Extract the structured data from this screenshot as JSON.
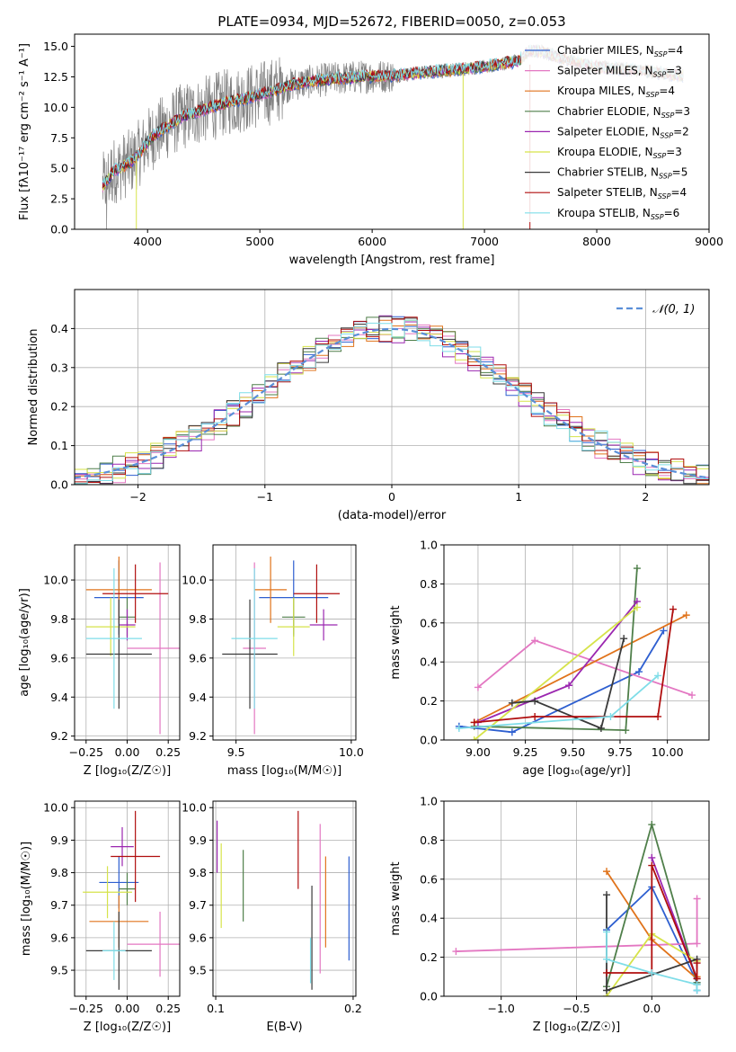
{
  "colors": {
    "chabrier_miles": "#2e5fd0",
    "salpeter_miles": "#e377c2",
    "kroupa_miles": "#e0731b",
    "chabrier_elodie": "#4f7f4a",
    "salpeter_elodie": "#9b27b0",
    "kroupa_elodie": "#d6e34a",
    "chabrier_stelib": "#3a3a3a",
    "salpeter_stelib": "#b00e0e",
    "kroupa_stelib": "#7fdde8",
    "observed": "#808080",
    "normal_curve": "#5b8fd8"
  },
  "chart_data": [
    {
      "type": "line",
      "title": "PLATE=0934, MJD=52672, FIBERID=0050, z=0.053",
      "xlabel": "wavelength [Angstrom, rest frame]",
      "ylabel": "Flux [fλ10⁻¹⁷ erg cm⁻² s⁻¹ A⁻¹]",
      "xlim": [
        3350,
        9000
      ],
      "ylim": [
        0,
        16
      ],
      "xticks": [
        4000,
        5000,
        6000,
        7000,
        8000,
        9000
      ],
      "yticks": [
        "0.0",
        "2.5",
        "5.0",
        "7.5",
        "10.0",
        "12.5",
        "15.0"
      ],
      "legend_position": "right",
      "legend": [
        {
          "label": "Chabrier MILES, N",
          "sub": "SSP",
          "suffix": "=4",
          "color_key": "chabrier_miles"
        },
        {
          "label": "Salpeter MILES, N",
          "sub": "SSP",
          "suffix": "=3",
          "color_key": "salpeter_miles"
        },
        {
          "label": "Kroupa MILES, N",
          "sub": "SSP",
          "suffix": "=4",
          "color_key": "kroupa_miles"
        },
        {
          "label": "Chabrier ELODIE, N",
          "sub": "SSP",
          "suffix": "=3",
          "color_key": "chabrier_elodie"
        },
        {
          "label": "Salpeter ELODIE, N",
          "sub": "SSP",
          "suffix": "=2",
          "color_key": "salpeter_elodie"
        },
        {
          "label": "Kroupa ELODIE, N",
          "sub": "SSP",
          "suffix": "=3",
          "color_key": "kroupa_elodie"
        },
        {
          "label": "Chabrier STELIB, N",
          "sub": "SSP",
          "suffix": "=5",
          "color_key": "chabrier_stelib"
        },
        {
          "label": "Salpeter STELIB, N",
          "sub": "SSP",
          "suffix": "=4",
          "color_key": "salpeter_stelib"
        },
        {
          "label": "Kroupa STELIB, N",
          "sub": "SSP",
          "suffix": "=6",
          "color_key": "kroupa_stelib"
        }
      ],
      "model_trend": {
        "x": [
          3600,
          3700,
          3850,
          3950,
          4000,
          4100,
          4300,
          4500,
          4700,
          4900,
          5100,
          5300,
          5600,
          5900,
          6200,
          6500,
          6800,
          7100,
          7300,
          7400,
          7500,
          7700,
          7900,
          8100,
          8300,
          8500,
          8750
        ],
        "y": [
          3.5,
          4.8,
          5.5,
          6.5,
          7.2,
          8.0,
          9.2,
          9.8,
          10.4,
          10.8,
          11.3,
          11.9,
          12.3,
          12.5,
          12.6,
          12.9,
          13.1,
          13.5,
          13.8,
          14.6,
          14.6,
          14.0,
          13.5,
          13.2,
          13.1,
          12.9,
          12.6
        ]
      }
    },
    {
      "type": "histogram",
      "xlabel": "(data-model)/error",
      "ylabel": "Normed distribution",
      "xlim": [
        -2.5,
        2.5
      ],
      "ylim": [
        0,
        0.5
      ],
      "xticks": [
        -2,
        -1,
        0,
        1,
        2
      ],
      "yticks": [
        "0.0",
        "0.1",
        "0.2",
        "0.3",
        "0.4"
      ],
      "legend_label": "𝒩(0, 1)",
      "curve": "normal pdf mean 0 sigma 1",
      "bin_width": 0.1,
      "grid": true
    },
    {
      "type": "errorbar",
      "xlabel": "Z [log₁₀(Z/Z☉)]",
      "ylabel": "age  [log₁₀(age/yr)]",
      "xlim": [
        -0.32,
        0.32
      ],
      "ylim": [
        9.18,
        10.18
      ],
      "xticks": [
        "−0.25",
        "0.00",
        "0.25"
      ],
      "yticks": [
        "9.2",
        "9.4",
        "9.6",
        "9.8",
        "10.0"
      ],
      "points": [
        {
          "key": "chabrier_miles",
          "x": -0.05,
          "xerr": 0.15,
          "y": 9.91,
          "yerr": 0.19
        },
        {
          "key": "salpeter_miles",
          "x": 0.2,
          "xerr": 0.2,
          "y": 9.65,
          "yerr": 0.44
        },
        {
          "key": "kroupa_miles",
          "x": -0.05,
          "xerr": 0.2,
          "y": 9.95,
          "yerr": 0.17
        },
        {
          "key": "chabrier_elodie",
          "x": 0.0,
          "xerr": 0.05,
          "y": 9.81,
          "yerr": 0.1
        },
        {
          "key": "salpeter_elodie",
          "x": 0.0,
          "xerr": 0.05,
          "y": 9.77,
          "yerr": 0.08
        },
        {
          "key": "kroupa_elodie",
          "x": -0.1,
          "xerr": 0.15,
          "y": 9.76,
          "yerr": 0.15
        },
        {
          "key": "chabrier_stelib",
          "x": -0.05,
          "xerr": 0.2,
          "y": 9.62,
          "yerr": 0.28
        },
        {
          "key": "salpeter_stelib",
          "x": 0.05,
          "xerr": 0.2,
          "y": 9.93,
          "yerr": 0.15
        },
        {
          "key": "kroupa_stelib",
          "x": -0.08,
          "xerr": 0.17,
          "y": 9.7,
          "yerr": 0.36
        }
      ]
    },
    {
      "type": "errorbar",
      "xlabel": "mass [log₁₀(M/M☉)]",
      "ylabel": "",
      "xlim": [
        9.4,
        10.02
      ],
      "ylim": [
        9.18,
        10.18
      ],
      "xticks": [
        "9.5",
        "10.0"
      ],
      "yticks": [
        "9.2",
        "9.4",
        "9.6",
        "9.8",
        "10.0"
      ],
      "points": [
        {
          "key": "chabrier_miles",
          "x": 9.75,
          "xerr": 0.15,
          "y": 9.91,
          "yerr": 0.19
        },
        {
          "key": "salpeter_miles",
          "x": 9.58,
          "xerr": 0.05,
          "y": 9.65,
          "yerr": 0.44
        },
        {
          "key": "kroupa_miles",
          "x": 9.65,
          "xerr": 0.07,
          "y": 9.95,
          "yerr": 0.17
        },
        {
          "key": "chabrier_elodie",
          "x": 9.75,
          "xerr": 0.05,
          "y": 9.81,
          "yerr": 0.1
        },
        {
          "key": "salpeter_elodie",
          "x": 9.88,
          "xerr": 0.06,
          "y": 9.77,
          "yerr": 0.08
        },
        {
          "key": "kroupa_elodie",
          "x": 9.75,
          "xerr": 0.07,
          "y": 9.76,
          "yerr": 0.15
        },
        {
          "key": "chabrier_stelib",
          "x": 9.56,
          "xerr": 0.12,
          "y": 9.62,
          "yerr": 0.28
        },
        {
          "key": "salpeter_stelib",
          "x": 9.85,
          "xerr": 0.1,
          "y": 9.93,
          "yerr": 0.15
        },
        {
          "key": "kroupa_stelib",
          "x": 9.58,
          "xerr": 0.1,
          "y": 9.7,
          "yerr": 0.36
        }
      ]
    },
    {
      "type": "line",
      "xlabel": "age  [log₁₀(age/yr)]",
      "ylabel": "mass weight",
      "xlim": [
        8.82,
        10.22
      ],
      "ylim": [
        0,
        1
      ],
      "xticks": [
        "9.00",
        "9.25",
        "9.50",
        "9.75",
        "10.00"
      ],
      "yticks": [
        "0.0",
        "0.2",
        "0.4",
        "0.6",
        "0.8",
        "1.0"
      ],
      "series": [
        {
          "key": "chabrier_miles",
          "x": [
            8.9,
            9.18,
            9.85,
            9.98
          ],
          "y": [
            0.07,
            0.04,
            0.35,
            0.56
          ]
        },
        {
          "key": "salpeter_miles",
          "x": [
            9.0,
            9.3,
            10.13
          ],
          "y": [
            0.27,
            0.51,
            0.23
          ]
        },
        {
          "key": "kroupa_miles",
          "x": [
            8.98,
            10.1
          ],
          "y": [
            0.09,
            0.64
          ]
        },
        {
          "key": "chabrier_elodie",
          "x": [
            8.98,
            9.78,
            9.84
          ],
          "y": [
            0.07,
            0.05,
            0.88
          ]
        },
        {
          "key": "salpeter_elodie",
          "x": [
            9.0,
            9.48,
            9.84
          ],
          "y": [
            0.09,
            0.28,
            0.71
          ]
        },
        {
          "key": "kroupa_elodie",
          "x": [
            8.98,
            9.84
          ],
          "y": [
            0.0,
            0.68
          ]
        },
        {
          "key": "chabrier_stelib",
          "x": [
            9.18,
            9.3,
            9.65,
            9.77
          ],
          "y": [
            0.19,
            0.2,
            0.06,
            0.52
          ]
        },
        {
          "key": "salpeter_stelib",
          "x": [
            8.98,
            9.3,
            9.95,
            10.03
          ],
          "y": [
            0.09,
            0.12,
            0.12,
            0.67
          ]
        },
        {
          "key": "kroupa_stelib",
          "x": [
            8.9,
            9.7,
            9.95
          ],
          "y": [
            0.06,
            0.12,
            0.33
          ]
        }
      ]
    },
    {
      "type": "errorbar",
      "xlabel": "Z [log₁₀(Z/Z☉)]",
      "ylabel": "mass [log₁₀(M/M☉)]",
      "xlim": [
        -0.32,
        0.32
      ],
      "ylim": [
        9.42,
        10.02
      ],
      "xticks": [
        "−0.25",
        "0.00",
        "0.25"
      ],
      "yticks": [
        "9.5",
        "9.6",
        "9.7",
        "9.8",
        "9.9",
        "10.0"
      ],
      "points": [
        {
          "key": "chabrier_miles",
          "x": -0.05,
          "xerr": 0.12,
          "y": 9.77,
          "yerr": 0.08
        },
        {
          "key": "salpeter_miles",
          "x": 0.2,
          "xerr": 0.2,
          "y": 9.58,
          "yerr": 0.1
        },
        {
          "key": "kroupa_miles",
          "x": -0.05,
          "xerr": 0.18,
          "y": 9.65,
          "yerr": 0.08
        },
        {
          "key": "chabrier_elodie",
          "x": 0.0,
          "xerr": 0.05,
          "y": 9.75,
          "yerr": 0.05
        },
        {
          "key": "salpeter_elodie",
          "x": -0.03,
          "xerr": 0.07,
          "y": 9.88,
          "yerr": 0.06
        },
        {
          "key": "kroupa_elodie",
          "x": -0.12,
          "xerr": 0.15,
          "y": 9.74,
          "yerr": 0.08
        },
        {
          "key": "chabrier_stelib",
          "x": -0.05,
          "xerr": 0.2,
          "y": 9.56,
          "yerr": 0.12
        },
        {
          "key": "salpeter_stelib",
          "x": 0.05,
          "xerr": 0.15,
          "y": 9.85,
          "yerr": 0.14
        },
        {
          "key": "kroupa_stelib",
          "x": -0.08,
          "xerr": 0.07,
          "y": 9.56,
          "yerr": 0.09
        }
      ]
    },
    {
      "type": "errorbar",
      "xlabel": "E(B-V)",
      "ylabel": "",
      "xlim": [
        0.098,
        0.202
      ],
      "ylim": [
        9.42,
        10.02
      ],
      "xticks": [
        "0.1",
        "0.2"
      ],
      "yticks": [
        "9.5",
        "9.6",
        "9.7",
        "9.8",
        "9.9",
        "10.0"
      ],
      "points": [
        {
          "key": "chabrier_miles",
          "x": 0.197,
          "xerr": 0,
          "y": 9.69,
          "yerr": 0.16
        },
        {
          "key": "salpeter_miles",
          "x": 0.176,
          "xerr": 0,
          "y": 9.72,
          "yerr": 0.23
        },
        {
          "key": "kroupa_miles",
          "x": 0.18,
          "xerr": 0,
          "y": 9.71,
          "yerr": 0.14
        },
        {
          "key": "chabrier_elodie",
          "x": 0.12,
          "xerr": 0,
          "y": 9.76,
          "yerr": 0.11
        },
        {
          "key": "salpeter_elodie",
          "x": 0.101,
          "xerr": 0,
          "y": 9.88,
          "yerr": 0.08
        },
        {
          "key": "kroupa_elodie",
          "x": 0.104,
          "xerr": 0,
          "y": 9.76,
          "yerr": 0.13
        },
        {
          "key": "chabrier_stelib",
          "x": 0.17,
          "xerr": 0,
          "y": 9.6,
          "yerr": 0.16
        },
        {
          "key": "salpeter_stelib",
          "x": 0.16,
          "xerr": 0,
          "y": 9.87,
          "yerr": 0.12
        },
        {
          "key": "kroupa_stelib",
          "x": 0.169,
          "xerr": 0,
          "y": 9.53,
          "yerr": 0.07
        }
      ]
    },
    {
      "type": "line",
      "xlabel": "Z [log₁₀(Z/Z☉)]",
      "ylabel": "mass weight",
      "xlim": [
        -1.38,
        0.38
      ],
      "ylim": [
        0,
        1
      ],
      "xticks": [
        "−1.0",
        "−0.5",
        "0.0"
      ],
      "yticks": [
        "0.0",
        "0.2",
        "0.4",
        "0.6",
        "0.8",
        "1.0"
      ],
      "series": [
        {
          "key": "chabrier_miles",
          "x": [
            -0.3,
            0.0,
            0.3,
            0.3
          ],
          "y": [
            0.34,
            0.56,
            0.07,
            0.03
          ]
        },
        {
          "key": "salpeter_miles",
          "x": [
            -1.3,
            0.3,
            0.3
          ],
          "y": [
            0.23,
            0.27,
            0.5
          ]
        },
        {
          "key": "kroupa_miles",
          "x": [
            -0.3,
            0.0,
            0.3,
            0.3
          ],
          "y": [
            0.64,
            0.29,
            0.09,
            0.1
          ]
        },
        {
          "key": "chabrier_elodie",
          "x": [
            -0.3,
            0.0,
            0.3
          ],
          "y": [
            0.05,
            0.88,
            0.07
          ]
        },
        {
          "key": "salpeter_elodie",
          "x": [
            0.0,
            0.3
          ],
          "y": [
            0.71,
            0.09
          ]
        },
        {
          "key": "kroupa_elodie",
          "x": [
            -0.3,
            0.0,
            0.3
          ],
          "y": [
            0.0,
            0.32,
            0.18
          ]
        },
        {
          "key": "chabrier_stelib",
          "x": [
            -0.3,
            -0.3,
            0.3,
            0.3
          ],
          "y": [
            0.52,
            0.03,
            0.19,
            0.06
          ]
        },
        {
          "key": "salpeter_stelib",
          "x": [
            -0.3,
            0.0,
            0.0,
            0.3,
            0.3
          ],
          "y": [
            0.12,
            0.12,
            0.67,
            0.09,
            0.17
          ]
        },
        {
          "key": "kroupa_stelib",
          "x": [
            -0.3,
            -0.3,
            0.0,
            0.3,
            0.3
          ],
          "y": [
            0.33,
            0.19,
            0.12,
            0.06,
            0.03
          ]
        }
      ]
    }
  ]
}
